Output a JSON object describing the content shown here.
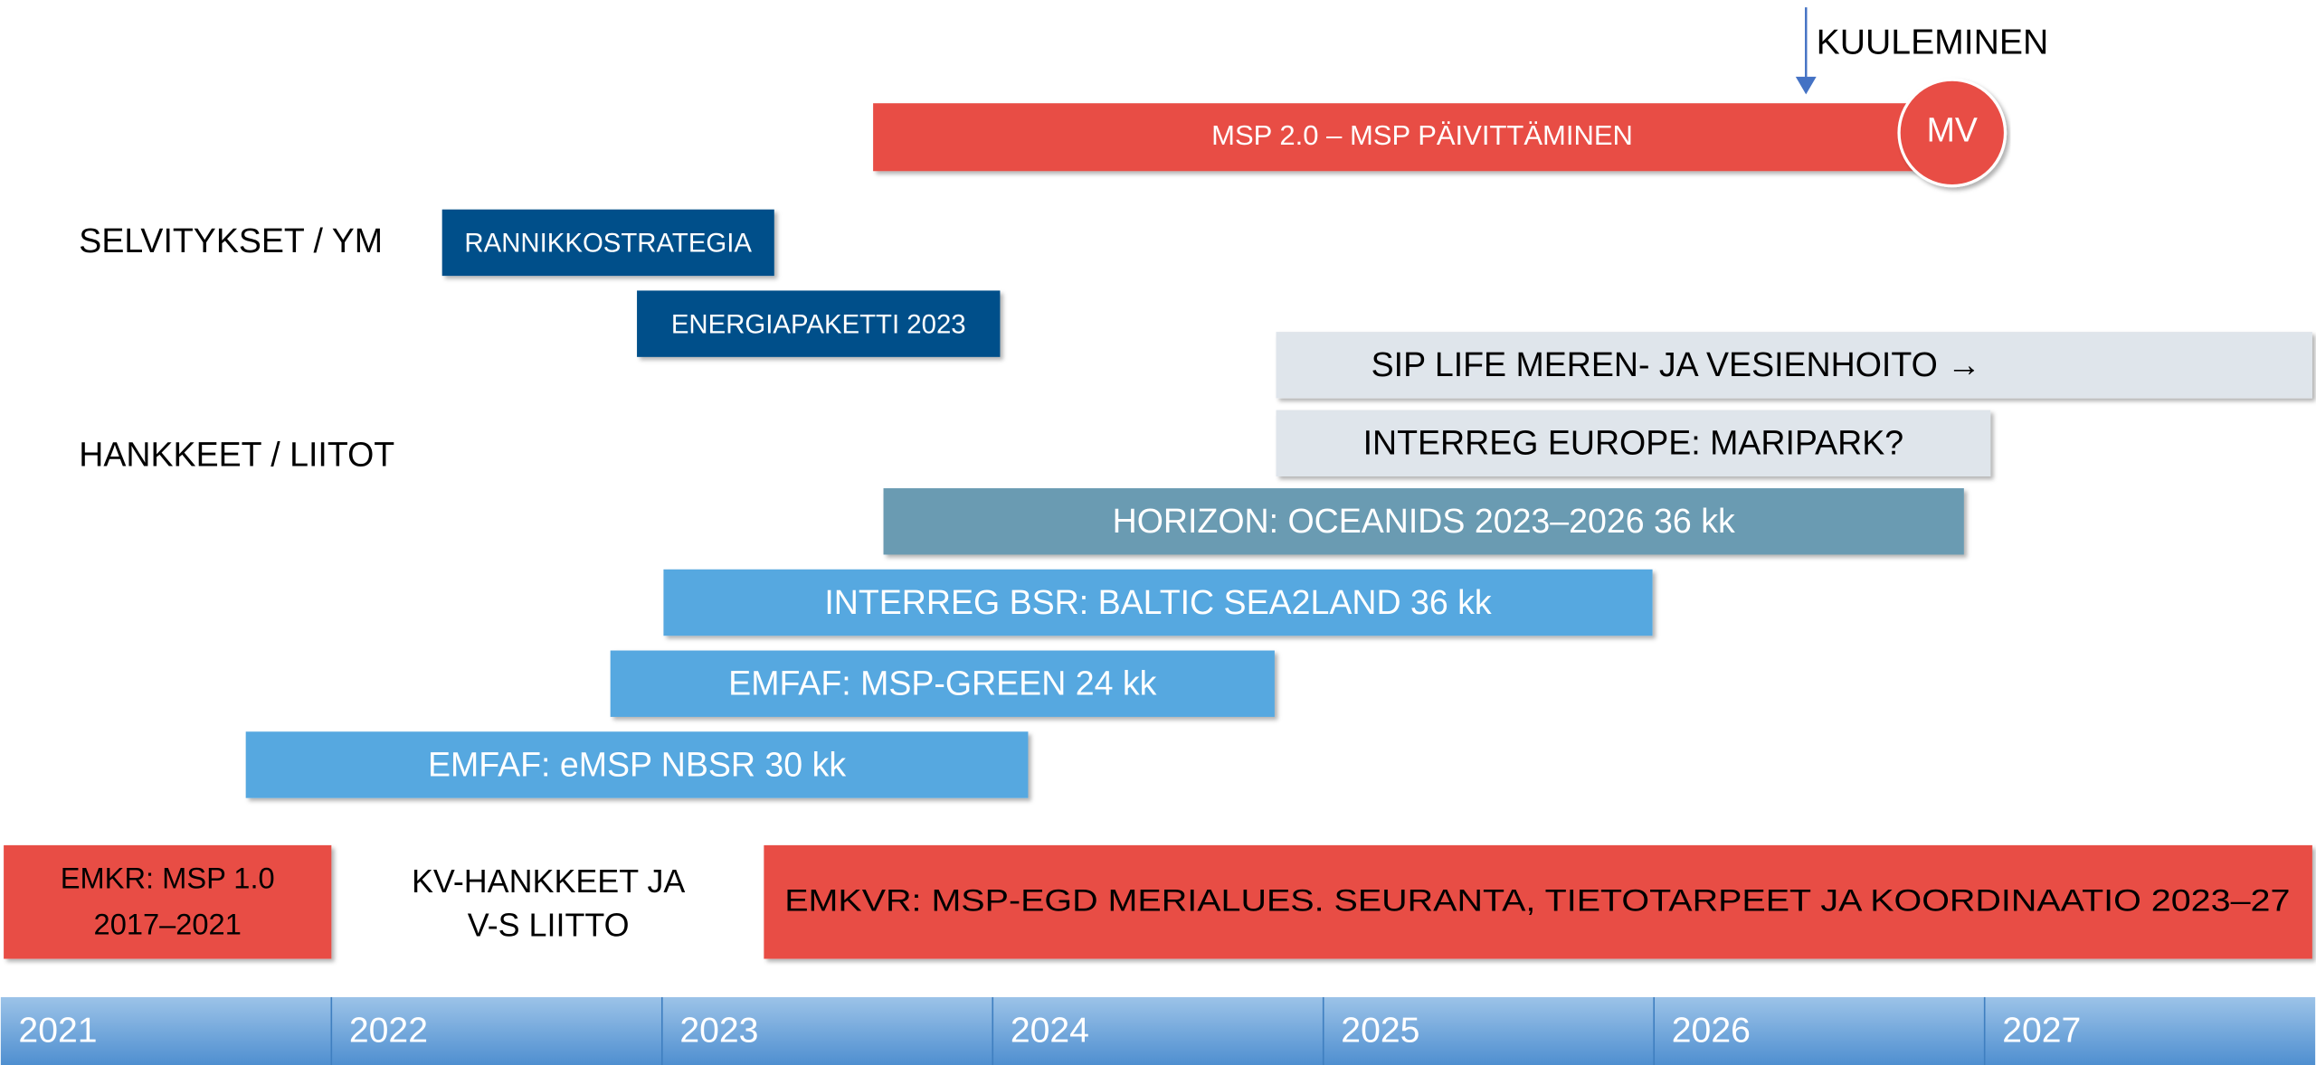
{
  "callout": "KUULEMINEN",
  "main_bar": {
    "label": "MSP 2.0 – MSP PÄIVITTÄMINEN",
    "badge": "MV"
  },
  "sections": [
    "SELVITYKSET / YM",
    "HANKKEET / LIITOT"
  ],
  "studies": [
    "RANNIKKOSTRATEGIA",
    "ENERGIAPAKETTI 2023"
  ],
  "projects": [
    "SIP LIFE MEREN- JA VESIENHOITO →",
    "INTERREG EUROPE: MARIPARK?",
    "HORIZON: OCEANIDS 2023–2026 36 kk",
    "INTERREG BSR: BALTIC SEA2LAND 36 kk",
    "EMFAF: MSP-GREEN 24 kk",
    "EMFAF: eMSP NBSR 30 kk"
  ],
  "bottom": {
    "emkr": [
      "EMKR: MSP 1.0",
      "2017–2021"
    ],
    "kv": [
      "KV-HANKKEET JA",
      "V-S LIITTO"
    ],
    "emkvr": "EMKVR: MSP-EGD MERIALUES. SEURANTA, TIETOTARPEET JA KOORDINAATIO 2023–27"
  },
  "years": [
    "2021",
    "2022",
    "2023",
    "2024",
    "2025",
    "2026",
    "2027"
  ]
}
